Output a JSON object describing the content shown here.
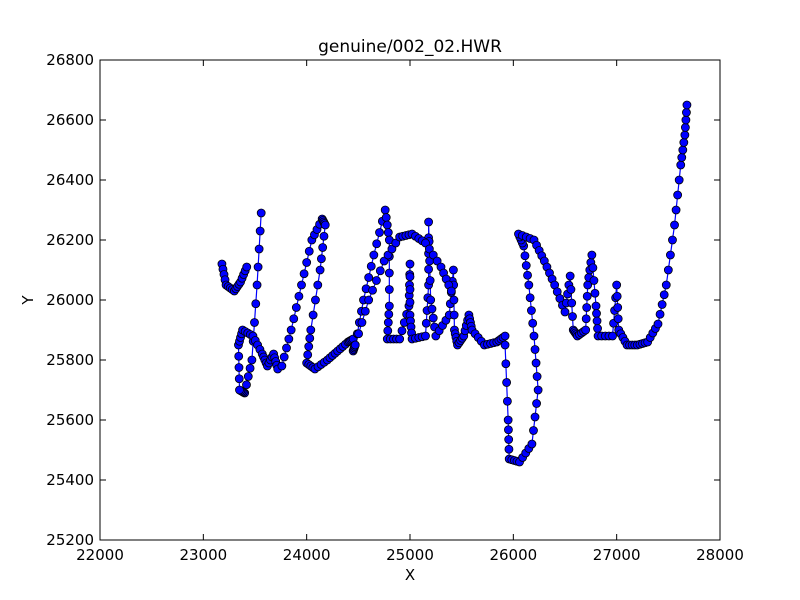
{
  "chart_data": {
    "type": "scatter",
    "title": "genuine/002_02.HWR",
    "xlabel": "X",
    "ylabel": "Y",
    "xlim": [
      22000,
      28000
    ],
    "ylim": [
      25200,
      26800
    ],
    "xticks": [
      "22000",
      "23000",
      "24000",
      "25000",
      "26000",
      "27000",
      "28000"
    ],
    "yticks": [
      "25200",
      "25400",
      "25600",
      "25800",
      "26000",
      "26200",
      "26400",
      "26600",
      "26800"
    ],
    "grid": false,
    "legend": false,
    "marker_color": "#0000ff",
    "line_color": "#0000ff",
    "strokes": [
      {
        "points": [
          [
            23180,
            26120
          ],
          [
            23220,
            26050
          ],
          [
            23300,
            26030
          ],
          [
            23360,
            26060
          ],
          [
            23420,
            26110
          ]
        ]
      },
      {
        "points": [
          [
            23560,
            26290
          ],
          [
            23520,
            26050
          ],
          [
            23470,
            25800
          ],
          [
            23400,
            25690
          ],
          [
            23350,
            25700
          ],
          [
            23340,
            25850
          ],
          [
            23380,
            25900
          ],
          [
            23480,
            25880
          ],
          [
            23570,
            25820
          ],
          [
            23620,
            25780
          ],
          [
            23680,
            25820
          ],
          [
            23720,
            25770
          ]
        ]
      },
      {
        "points": [
          [
            23760,
            25780
          ],
          [
            23850,
            25900
          ],
          [
            23950,
            26050
          ],
          [
            24050,
            26200
          ],
          [
            24150,
            26270
          ],
          [
            24180,
            26250
          ],
          [
            24130,
            26100
          ],
          [
            24040,
            25900
          ],
          [
            24000,
            25790
          ],
          [
            24080,
            25770
          ],
          [
            24200,
            25800
          ],
          [
            24300,
            25830
          ],
          [
            24400,
            25860
          ],
          [
            24450,
            25870
          ]
        ]
      },
      {
        "points": [
          [
            24450,
            25830
          ],
          [
            24470,
            25850
          ],
          [
            24550,
            26000
          ],
          [
            24650,
            26150
          ],
          [
            24760,
            26300
          ],
          [
            24800,
            26200
          ],
          [
            24800,
            25980
          ],
          [
            24780,
            25870
          ],
          [
            24900,
            25870
          ],
          [
            24990,
            25980
          ],
          [
            25000,
            26120
          ],
          [
            25000,
            25950
          ],
          [
            25020,
            25870
          ],
          [
            25150,
            25880
          ],
          [
            25180,
            26050
          ],
          [
            25180,
            26260
          ],
          [
            25200,
            26000
          ],
          [
            25250,
            25880
          ],
          [
            25380,
            25950
          ],
          [
            25420,
            26100
          ],
          [
            25430,
            25900
          ],
          [
            25460,
            25850
          ],
          [
            25520,
            25880
          ],
          [
            25570,
            25950
          ],
          [
            25600,
            25900
          ],
          [
            25720,
            25850
          ],
          [
            25840,
            25860
          ],
          [
            25920,
            25880
          ]
        ]
      },
      {
        "points": [
          [
            24470,
            25850
          ],
          [
            24600,
            26000
          ],
          [
            24750,
            26130
          ],
          [
            24900,
            26210
          ],
          [
            25020,
            26220
          ],
          [
            25150,
            26190
          ],
          [
            25300,
            26110
          ],
          [
            25400,
            26030
          ]
        ]
      },
      {
        "points": [
          [
            25920,
            25850
          ],
          [
            25950,
            25600
          ],
          [
            25960,
            25470
          ],
          [
            26060,
            25460
          ],
          [
            26180,
            25520
          ],
          [
            26240,
            25700
          ],
          [
            26200,
            25880
          ],
          [
            26150,
            26050
          ],
          [
            26100,
            26180
          ],
          [
            26050,
            26220
          ],
          [
            26200,
            26200
          ],
          [
            26300,
            26130
          ],
          [
            26400,
            26050
          ],
          [
            26500,
            25960
          ],
          [
            26550,
            26080
          ],
          [
            26580,
            25900
          ],
          [
            26620,
            25880
          ],
          [
            26700,
            25900
          ],
          [
            26720,
            26050
          ],
          [
            26760,
            26150
          ],
          [
            26800,
            25980
          ],
          [
            26820,
            25880
          ],
          [
            26960,
            25880
          ],
          [
            27000,
            26050
          ],
          [
            27020,
            25900
          ],
          [
            27100,
            25850
          ],
          [
            27200,
            25850
          ],
          [
            27300,
            25860
          ],
          [
            27400,
            25920
          ],
          [
            27480,
            26050
          ],
          [
            27560,
            26250
          ],
          [
            27620,
            26450
          ],
          [
            27660,
            26550
          ],
          [
            27680,
            26650
          ]
        ]
      }
    ]
  }
}
